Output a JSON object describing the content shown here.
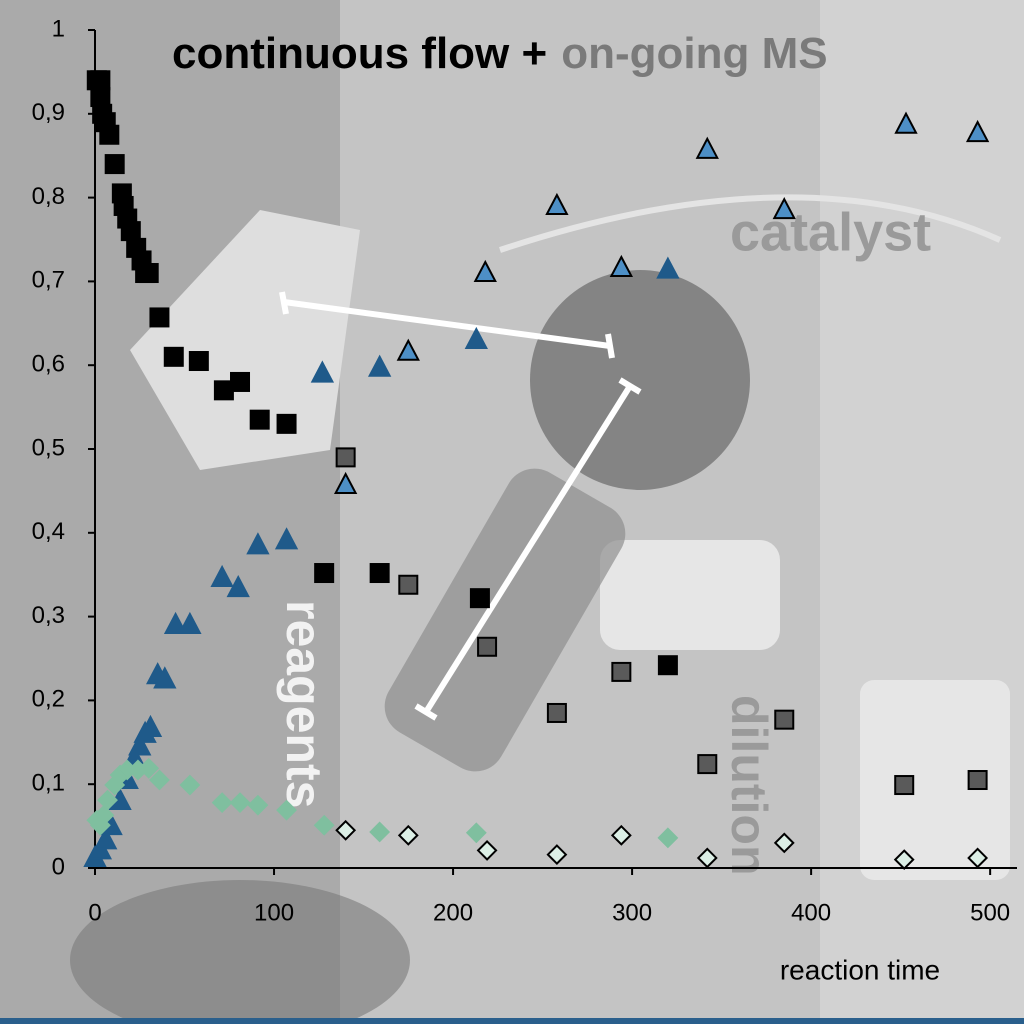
{
  "chart_data": {
    "type": "scatter",
    "title": "continuous flow +",
    "subtitle": "on-going MS",
    "xlabel": "reaction time",
    "annotations": [
      "catalyst",
      "reagents",
      "dilution"
    ],
    "xlim": [
      0,
      515
    ],
    "ylim": [
      0,
      1
    ],
    "xticks": [
      0,
      100,
      200,
      300,
      400,
      500
    ],
    "yticks": [
      0,
      {
        "value": 0.1,
        "label": "0,1"
      },
      {
        "value": 0.2,
        "label": "0,2"
      },
      {
        "value": 0.3,
        "label": "0,3"
      },
      {
        "value": 0.4,
        "label": "0,4"
      },
      {
        "value": 0.5,
        "label": "0,5"
      },
      {
        "value": 0.6,
        "label": "0,6"
      },
      {
        "value": 0.7,
        "label": "0,7"
      },
      {
        "value": 0.8,
        "label": "0,8"
      },
      {
        "value": 0.9,
        "label": "0,9"
      },
      1
    ],
    "series": [
      {
        "marker": "square",
        "color": "#000000",
        "edgecolor": "#000000",
        "x": [
          1,
          3,
          3,
          4,
          6,
          8,
          11,
          15,
          16,
          18,
          20,
          23,
          26,
          28,
          30,
          36,
          44,
          58,
          72,
          81,
          92,
          107,
          128,
          159,
          215,
          320
        ],
        "values": [
          0.94,
          0.94,
          0.92,
          0.9,
          0.89,
          0.875,
          0.84,
          0.805,
          0.79,
          0.775,
          0.76,
          0.74,
          0.725,
          0.71,
          0.71,
          0.657,
          0.61,
          0.605,
          0.57,
          0.58,
          0.535,
          0.53,
          0.352,
          0.352,
          0.322,
          0.242
        ]
      },
      {
        "marker": "square",
        "color": "#5a5a5a",
        "edgecolor": "#000000",
        "x": [
          140,
          175,
          219,
          258,
          294,
          342,
          385,
          452,
          493
        ],
        "values": [
          0.49,
          0.338,
          0.264,
          0.185,
          0.234,
          0.124,
          0.177,
          0.099,
          0.105
        ]
      },
      {
        "marker": "triangle",
        "color": "#1f5a8a",
        "edgecolor": "#1f5a8a",
        "x": [
          0,
          3,
          6,
          9,
          14,
          18,
          22,
          25,
          28,
          31,
          35,
          39,
          45,
          53,
          71,
          80,
          91,
          107,
          127,
          159,
          213,
          320
        ],
        "values": [
          0.012,
          0.021,
          0.033,
          0.05,
          0.08,
          0.105,
          0.13,
          0.145,
          0.16,
          0.167,
          0.23,
          0.225,
          0.29,
          0.29,
          0.346,
          0.334,
          0.385,
          0.391,
          0.59,
          0.597,
          0.63,
          0.714
        ]
      },
      {
        "marker": "triangle",
        "color": "#4d8fc6",
        "edgecolor": "#000000",
        "x": [
          140,
          175,
          218,
          258,
          294,
          342,
          385,
          453,
          493
        ],
        "values": [
          0.457,
          0.616,
          0.71,
          0.79,
          0.716,
          0.857,
          0.785,
          0.887,
          0.877
        ]
      },
      {
        "marker": "diamond",
        "color": "#7fbf9f",
        "edgecolor": "#7fbf9f",
        "x": [
          1,
          3,
          5,
          7,
          11,
          14,
          18,
          24,
          30,
          36,
          53,
          71,
          81,
          91,
          107,
          128,
          159,
          213,
          320
        ],
        "values": [
          0.057,
          0.051,
          0.063,
          0.081,
          0.099,
          0.111,
          0.117,
          0.117,
          0.119,
          0.105,
          0.099,
          0.078,
          0.078,
          0.075,
          0.069,
          0.051,
          0.043,
          0.042,
          0.036
        ]
      },
      {
        "marker": "diamond",
        "color": "#dcefe6",
        "edgecolor": "#000000",
        "x": [
          140,
          175,
          219,
          258,
          294,
          342,
          385,
          452,
          493
        ],
        "values": [
          0.045,
          0.039,
          0.021,
          0.016,
          0.039,
          0.012,
          0.03,
          0.01,
          0.012
        ]
      }
    ]
  }
}
